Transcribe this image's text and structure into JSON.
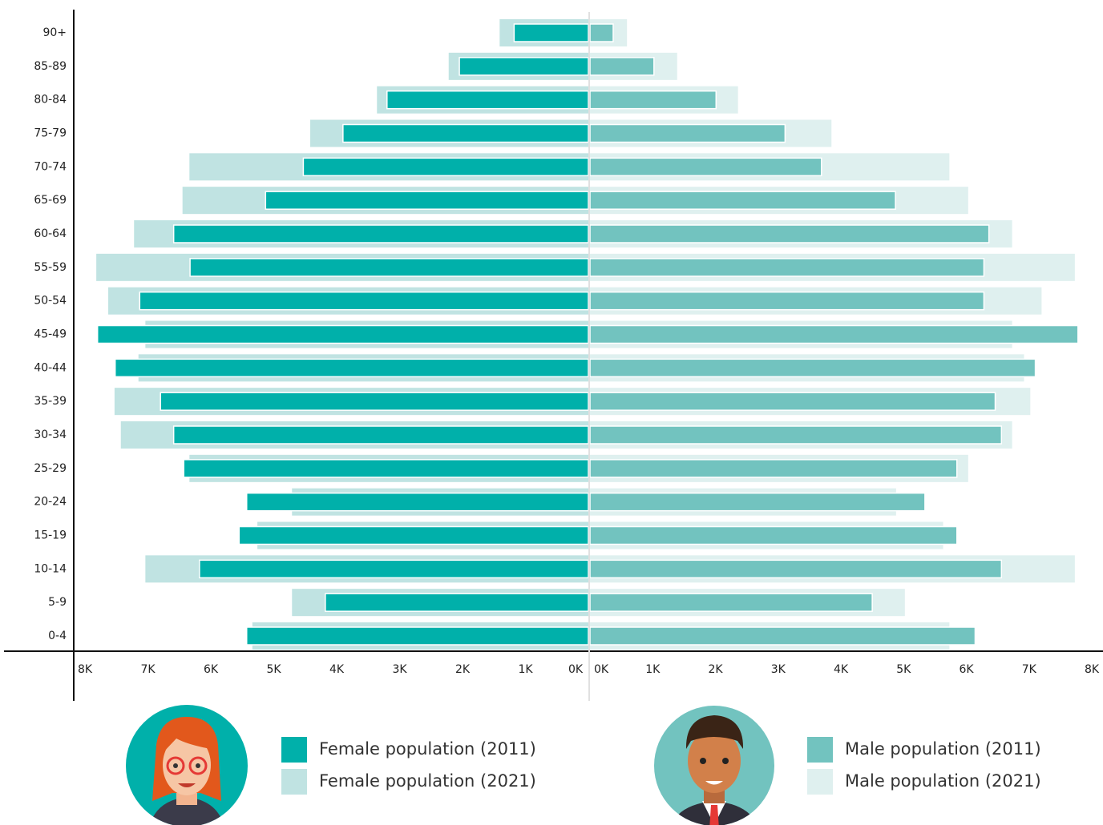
{
  "chart_data": {
    "type": "pyramid",
    "categories": [
      "90+",
      "85-89",
      "80-84",
      "75-79",
      "70-74",
      "65-69",
      "60-64",
      "55-59",
      "50-54",
      "45-49",
      "40-44",
      "35-39",
      "30-34",
      "25-29",
      "20-24",
      "15-19",
      "10-14",
      "5-9",
      "0-4"
    ],
    "series": [
      {
        "name": "Female population (2021)",
        "color": "#c0e3e2",
        "side": "left",
        "year": 2021,
        "values": [
          1.41,
          2.22,
          3.36,
          4.42,
          6.34,
          6.45,
          7.22,
          7.82,
          7.63,
          7.04,
          7.15,
          7.53,
          7.43,
          6.34,
          4.71,
          5.26,
          7.04,
          4.71,
          5.34
        ]
      },
      {
        "name": "Female population (2011)",
        "color": "#00b0aa",
        "side": "left",
        "year": 2011,
        "values": [
          1.18,
          2.05,
          3.2,
          3.9,
          4.53,
          5.13,
          6.59,
          6.33,
          7.13,
          7.8,
          7.52,
          6.8,
          6.59,
          6.43,
          5.43,
          5.55,
          6.18,
          4.18,
          5.43
        ]
      },
      {
        "name": "Male population (2021)",
        "color": "#dff0ef",
        "side": "right",
        "year": 2021,
        "values": [
          0.59,
          1.39,
          2.36,
          3.85,
          5.73,
          6.03,
          6.73,
          7.73,
          7.2,
          6.73,
          6.92,
          7.02,
          6.73,
          6.03,
          4.88,
          5.63,
          7.73,
          5.02,
          5.73
        ]
      },
      {
        "name": "Male population (2011)",
        "color": "#72c3bf",
        "side": "right",
        "year": 2011,
        "values": [
          0.37,
          1.02,
          2.01,
          3.11,
          3.69,
          4.87,
          6.36,
          6.28,
          6.28,
          7.78,
          7.1,
          6.46,
          6.56,
          5.85,
          5.34,
          5.85,
          6.56,
          4.5,
          6.14
        ]
      }
    ],
    "xlim": [
      0,
      8
    ],
    "xticks": [
      {
        "value": 0,
        "label": "0K"
      },
      {
        "value": 1,
        "label": "1K"
      },
      {
        "value": 2,
        "label": "2K"
      },
      {
        "value": 3,
        "label": "3K"
      },
      {
        "value": 4,
        "label": "4K"
      },
      {
        "value": 5,
        "label": "5K"
      },
      {
        "value": 6,
        "label": "6K"
      },
      {
        "value": 7,
        "label": "7K"
      },
      {
        "value": 8,
        "label": "8K"
      }
    ]
  }
}
